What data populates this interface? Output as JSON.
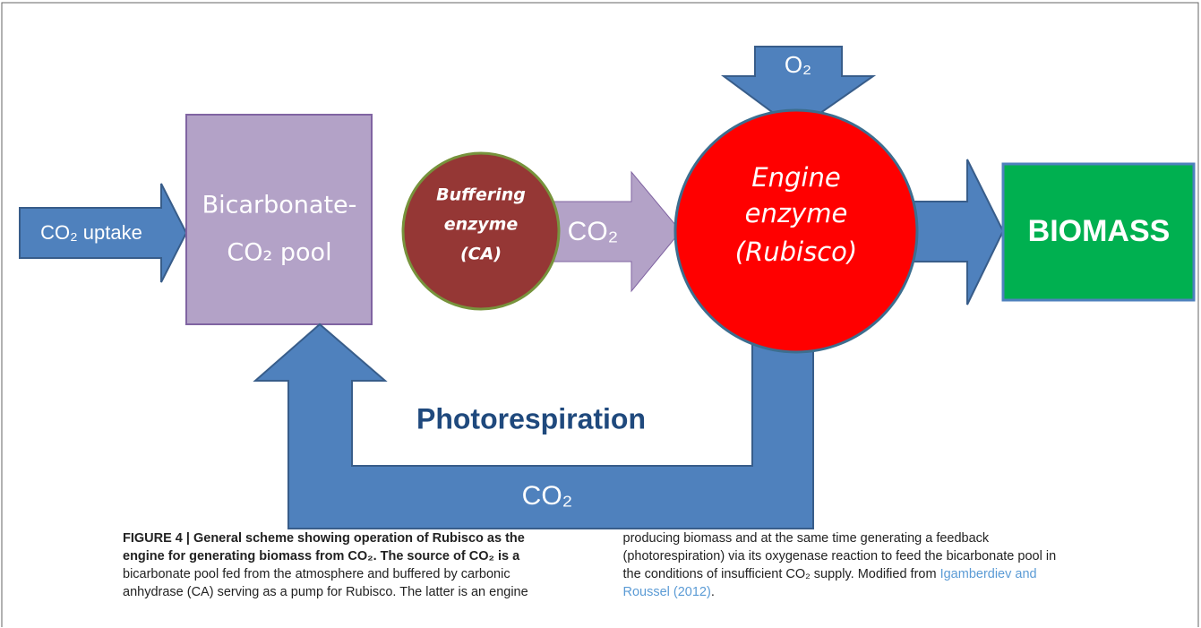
{
  "diagram": {
    "uptake": "CO₂ uptake",
    "pool": [
      "Bicarbonate-",
      "CO₂ pool"
    ],
    "buffer": [
      "Buffering",
      "enzyme",
      "(CA)"
    ],
    "co2_arrow": "CO₂",
    "oxygen": "O₂",
    "engine": [
      "Engine",
      "enzyme",
      "(Rubisco)"
    ],
    "biomass": "BIOMASS",
    "feedback_label": "Photorespiration",
    "feedback_co2": "CO₂"
  },
  "caption": {
    "bold": "FIGURE 4 | General scheme showing operation of Rubisco as the engine for generating biomass from CO₂. The source of CO₂ is a",
    "body": " bicarbonate pool fed from the atmosphere and buffered by carbonic anhydrase (CA) serving as a pump for Rubisco. The latter is an engine producing biomass and at the same time generating a feedback (photorespiration) via its oxygenase reaction to feed the bicarbonate pool in the conditions of insufficient CO₂ supply. Modified from ",
    "link": "Igamberdiev and Roussel (2012)",
    "end": "."
  }
}
